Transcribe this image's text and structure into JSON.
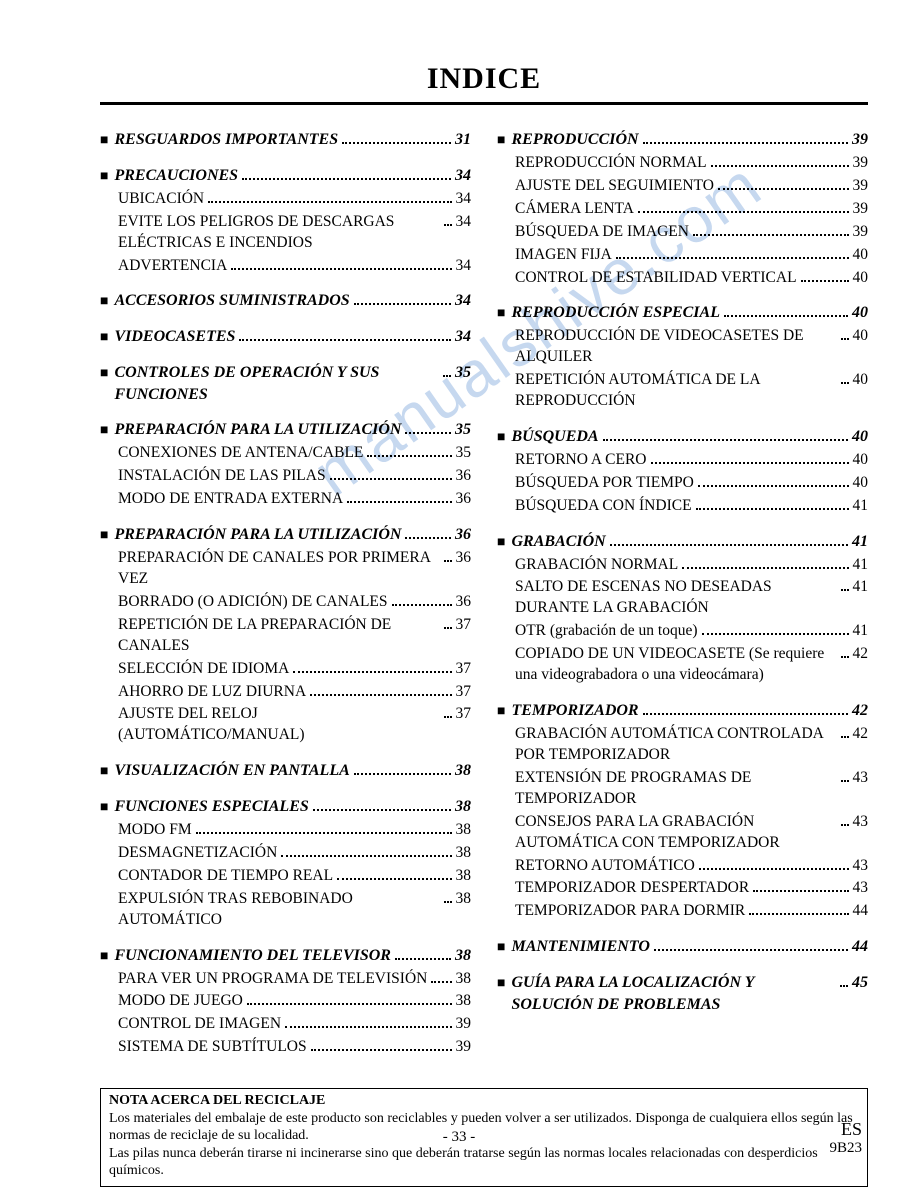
{
  "title": "INDICE",
  "page_number": "- 33 -",
  "footer_right_big": "ES",
  "footer_right_small": "9B23",
  "watermark": "manualshive.com",
  "note": {
    "title": "NOTA ACERCA DEL RECICLAJE",
    "line1": "Los materiales del embalaje de este producto son reciclables y pueden volver a ser utilizados. Disponga de cualquiera ellos según las normas de reciclaje de su localidad.",
    "line2": "Las pilas nunca deberán tirarse ni incinerarse sino que deberán tratarse según las normas locales relacionadas con desperdicios químicos."
  },
  "left": [
    {
      "type": "section",
      "label": "RESGUARDOS IMPORTANTES",
      "page": "31"
    },
    {
      "type": "section",
      "label": "PRECAUCIONES",
      "page": "34",
      "subs": [
        {
          "label": "UBICACIÓN",
          "page": "34"
        },
        {
          "label": "EVITE LOS PELIGROS DE DESCARGAS ELÉCTRICAS E INCENDIOS",
          "page": "34"
        },
        {
          "label": "ADVERTENCIA",
          "page": "34"
        }
      ]
    },
    {
      "type": "section",
      "label": "ACCESORIOS SUMINISTRADOS",
      "page": "34"
    },
    {
      "type": "section",
      "label": "VIDEOCASETES",
      "page": "34"
    },
    {
      "type": "section",
      "label": "CONTROLES DE OPERACIÓN Y SUS FUNCIONES",
      "page": "35"
    },
    {
      "type": "section",
      "label": "PREPARACIÓN PARA LA UTILIZACIÓN",
      "page": "35",
      "subs": [
        {
          "label": "CONEXIONES DE ANTENA/CABLE",
          "page": "35"
        },
        {
          "label": "INSTALACIÓN DE LAS PILAS",
          "page": "36"
        },
        {
          "label": "MODO DE ENTRADA EXTERNA",
          "page": "36"
        }
      ]
    },
    {
      "type": "section",
      "label": "PREPARACIÓN PARA LA UTILIZACIÓN",
      "page": "36",
      "subs": [
        {
          "label": "PREPARACIÓN DE CANALES POR PRIMERA VEZ",
          "page": "36"
        },
        {
          "label": "BORRADO (O ADICIÓN) DE CANALES",
          "page": "36"
        },
        {
          "label": "REPETICIÓN DE LA PREPARACIÓN DE CANALES",
          "page": "37"
        },
        {
          "label": "SELECCIÓN DE IDIOMA",
          "page": "37"
        },
        {
          "label": "AHORRO DE LUZ DIURNA",
          "page": "37"
        },
        {
          "label": "AJUSTE DEL RELOJ (AUTOMÁTICO/MANUAL)",
          "page": "37"
        }
      ]
    },
    {
      "type": "section",
      "label": "VISUALIZACIÓN EN PANTALLA",
      "page": "38"
    },
    {
      "type": "section",
      "label": "FUNCIONES ESPECIALES",
      "page": "38",
      "subs": [
        {
          "label": "MODO FM",
          "page": "38"
        },
        {
          "label": "DESMAGNETIZACIÓN",
          "page": "38"
        },
        {
          "label": "CONTADOR DE TIEMPO REAL",
          "page": "38"
        },
        {
          "label": "EXPULSIÓN TRAS REBOBINADO AUTOMÁTICO",
          "page": "38"
        }
      ]
    },
    {
      "type": "section",
      "label": "FUNCIONAMIENTO DEL TELEVISOR",
      "page": "38",
      "subs": [
        {
          "label": "PARA VER UN PROGRAMA DE TELEVISIÓN",
          "page": "38"
        },
        {
          "label": "MODO DE JUEGO",
          "page": "38"
        },
        {
          "label": "CONTROL DE IMAGEN",
          "page": "39"
        },
        {
          "label": "SISTEMA DE SUBTÍTULOS",
          "page": "39"
        }
      ]
    }
  ],
  "right": [
    {
      "type": "section",
      "label": "REPRODUCCIÓN",
      "page": "39",
      "subs": [
        {
          "label": "REPRODUCCIÓN NORMAL",
          "page": "39"
        },
        {
          "label": "AJUSTE DEL SEGUIMIENTO",
          "page": "39"
        },
        {
          "label": "CÁMERA LENTA",
          "page": "39"
        },
        {
          "label": "BÚSQUEDA DE IMAGEN",
          "page": "39"
        },
        {
          "label": "IMAGEN FIJA",
          "page": "40"
        },
        {
          "label": "CONTROL DE ESTABILIDAD VERTICAL",
          "page": "40"
        }
      ]
    },
    {
      "type": "section",
      "label": "REPRODUCCIÓN ESPECIAL",
      "page": "40",
      "subs": [
        {
          "label": "REPRODUCCIÓN DE VIDEOCASETES DE ALQUILER",
          "page": "40"
        },
        {
          "label": "REPETICIÓN AUTOMÁTICA DE LA REPRODUCCIÓN",
          "page": "40"
        }
      ]
    },
    {
      "type": "section",
      "label": "BÚSQUEDA",
      "page": "40",
      "subs": [
        {
          "label": "RETORNO A CERO",
          "page": "40"
        },
        {
          "label": "BÚSQUEDA POR TIEMPO",
          "page": "40"
        },
        {
          "label": "BÚSQUEDA CON ÍNDICE",
          "page": "41"
        }
      ]
    },
    {
      "type": "section",
      "label": "GRABACIÓN",
      "page": "41",
      "subs": [
        {
          "label": "GRABACIÓN NORMAL",
          "page": "41"
        },
        {
          "label": "SALTO DE ESCENAS NO DESEADAS DURANTE LA GRABACIÓN",
          "page": "41"
        },
        {
          "label": "OTR (grabación de un toque)",
          "page": "41"
        },
        {
          "label": "COPIADO DE UN VIDEOCASETE (Se requiere una videograbadora o una videocámara)",
          "page": "42"
        }
      ]
    },
    {
      "type": "section",
      "label": "TEMPORIZADOR",
      "page": "42",
      "subs": [
        {
          "label": "GRABACIÓN AUTOMÁTICA CONTROLADA POR TEMPORIZADOR",
          "page": "42"
        },
        {
          "label": "EXTENSIÓN DE PROGRAMAS DE TEMPORIZADOR",
          "page": "43"
        },
        {
          "label": "CONSEJOS PARA LA GRABACIÓN AUTOMÁTICA CON TEMPORIZADOR",
          "page": "43"
        },
        {
          "label": "RETORNO AUTOMÁTICO",
          "page": "43"
        },
        {
          "label": "TEMPORIZADOR DESPERTADOR",
          "page": "43"
        },
        {
          "label": "TEMPORIZADOR PARA DORMIR",
          "page": "44"
        }
      ]
    },
    {
      "type": "section",
      "label": "MANTENIMIENTO",
      "page": "44"
    },
    {
      "type": "section",
      "label": "GUÍA PARA LA LOCALIZACIÓN Y SOLUCIÓN DE PROBLEMAS",
      "page": "45"
    }
  ]
}
